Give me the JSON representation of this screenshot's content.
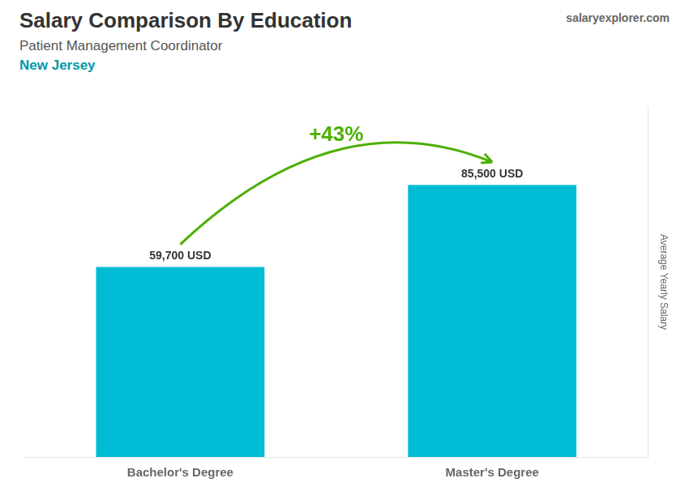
{
  "chart_data": {
    "type": "bar",
    "title": "Salary Comparison By Education",
    "subtitle": "Patient Management Coordinator",
    "annotations": [
      "New Jersey",
      "+43%",
      "salaryexplorer.com"
    ],
    "ylabel": "Average Yearly Salary",
    "categories": [
      "Bachelor's Degree",
      "Master's Degree"
    ],
    "values": [
      59700,
      85500
    ],
    "value_labels": [
      "59,700 USD",
      "85,500 USD"
    ],
    "color": "#00bcd4",
    "ylim": [
      0,
      110000
    ],
    "grid": false,
    "data_labels": true,
    "tick_labels": "x"
  }
}
